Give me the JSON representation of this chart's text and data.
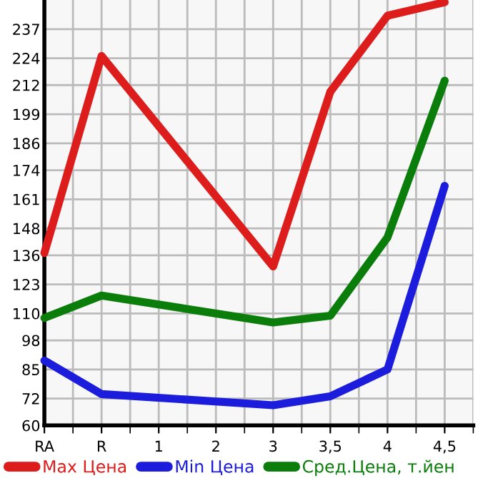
{
  "chart_data": {
    "type": "line",
    "categories": [
      "RA",
      "R",
      "1",
      "2",
      "3",
      "3,5",
      "4",
      "4,5"
    ],
    "series": [
      {
        "name": "Max Цена",
        "color": "#dd1c1c",
        "values": [
          137,
          225,
          null,
          null,
          131,
          209,
          243,
          249
        ]
      },
      {
        "name": "Min Цена",
        "color": "#1c1cdd",
        "values": [
          89,
          74,
          null,
          null,
          69,
          73,
          85,
          167
        ]
      },
      {
        "name": "Сред.Цена, т.йен",
        "color": "#0b7d0b",
        "values": [
          108,
          118,
          null,
          null,
          106,
          109,
          144,
          214
        ]
      }
    ],
    "ylim": [
      60,
      250
    ],
    "yticks": [
      60,
      72,
      85,
      98,
      110,
      123,
      136,
      148,
      161,
      174,
      186,
      199,
      212,
      224,
      237
    ],
    "grid": true,
    "legend": "bottom",
    "marker": "none",
    "line_style": "solid"
  }
}
